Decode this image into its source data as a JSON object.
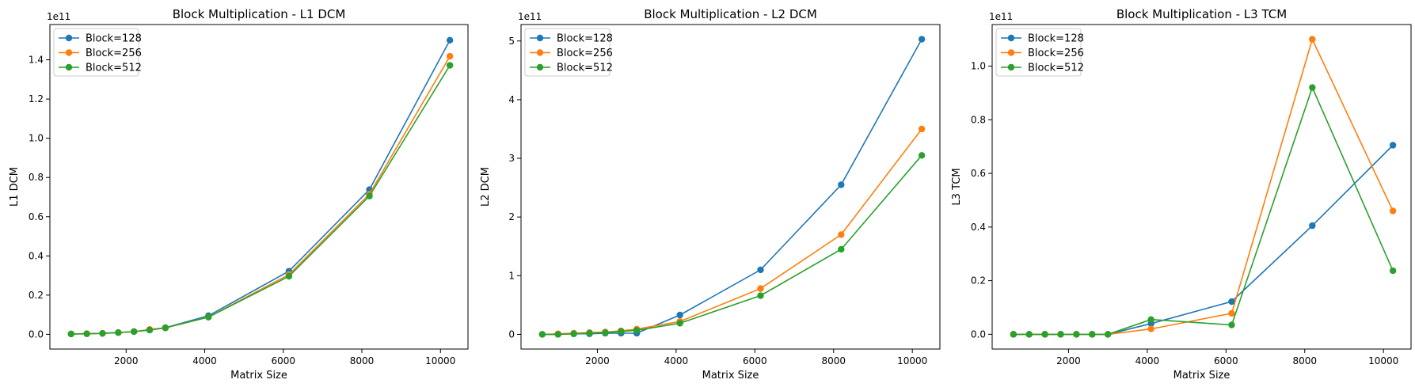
{
  "chart_data": [
    {
      "type": "line",
      "title": "Block Multiplication - L1 DCM",
      "xlabel": "Matrix Size",
      "ylabel": "L1 DCM",
      "y_offset_label": "1e11",
      "y_scale": 100000000000.0,
      "xlim": [
        60,
        10700
      ],
      "ylim": [
        -0.075,
        1.58
      ],
      "xticks": [
        2000,
        4000,
        6000,
        8000,
        10000
      ],
      "xtick_labels": [
        "2000",
        "4000",
        "6000",
        "8000",
        "10000"
      ],
      "yticks": [
        0.0,
        0.2,
        0.4,
        0.6,
        0.8,
        1.0,
        1.2,
        1.4
      ],
      "ytick_labels": [
        "0.0",
        "0.2",
        "0.4",
        "0.6",
        "0.8",
        "1.0",
        "1.2",
        "1.4"
      ],
      "legend": "top-left",
      "x": [
        600,
        1000,
        1400,
        1800,
        2200,
        2600,
        3000,
        4096,
        6144,
        8192,
        10240
      ],
      "series": [
        {
          "name": "Block=128",
          "color": "#1f77b4",
          "values": [
            0.002,
            0.003,
            0.005,
            0.009,
            0.014,
            0.022,
            0.034,
            0.095,
            0.322,
            0.738,
            1.5
          ]
        },
        {
          "name": "Block=256",
          "color": "#ff7f0e",
          "values": [
            0.002,
            0.003,
            0.005,
            0.009,
            0.014,
            0.025,
            0.033,
            0.088,
            0.305,
            0.715,
            1.418
          ]
        },
        {
          "name": "Block=512",
          "color": "#2ca02c",
          "values": [
            0.002,
            0.003,
            0.005,
            0.009,
            0.014,
            0.022,
            0.033,
            0.088,
            0.296,
            0.705,
            1.372
          ]
        }
      ]
    },
    {
      "type": "line",
      "title": "Block Multiplication - L2 DCM",
      "xlabel": "Matrix Size",
      "ylabel": "L2 DCM",
      "y_offset_label": "1e11",
      "y_scale": 100000000000.0,
      "xlim": [
        60,
        10700
      ],
      "ylim": [
        -0.25,
        5.28
      ],
      "xticks": [
        2000,
        4000,
        6000,
        8000,
        10000
      ],
      "xtick_labels": [
        "2000",
        "4000",
        "6000",
        "8000",
        "10000"
      ],
      "yticks": [
        0,
        1,
        2,
        3,
        4,
        5
      ],
      "ytick_labels": [
        "0",
        "1",
        "2",
        "3",
        "4",
        "5"
      ],
      "legend": "top-left",
      "x": [
        600,
        1000,
        1400,
        1800,
        2200,
        2600,
        3000,
        4096,
        6144,
        8192,
        10240
      ],
      "series": [
        {
          "name": "Block=128",
          "color": "#1f77b4",
          "values": [
            0.0,
            0.0,
            0.01,
            0.01,
            0.02,
            0.02,
            0.02,
            0.33,
            1.1,
            2.55,
            5.03
          ]
        },
        {
          "name": "Block=256",
          "color": "#ff7f0e",
          "values": [
            0.0,
            0.01,
            0.02,
            0.03,
            0.04,
            0.06,
            0.09,
            0.22,
            0.78,
            1.7,
            3.5
          ]
        },
        {
          "name": "Block=512",
          "color": "#2ca02c",
          "values": [
            0.0,
            0.0,
            0.01,
            0.02,
            0.03,
            0.05,
            0.07,
            0.19,
            0.66,
            1.45,
            3.05
          ]
        }
      ]
    },
    {
      "type": "line",
      "title": "Block Multiplication - L3 TCM",
      "xlabel": "Matrix Size",
      "ylabel": "L3 TCM",
      "y_offset_label": "1e11",
      "y_scale": 100000000000.0,
      "xlim": [
        60,
        10700
      ],
      "ylim": [
        -0.055,
        1.155
      ],
      "xticks": [
        2000,
        4000,
        6000,
        8000,
        10000
      ],
      "xtick_labels": [
        "2000",
        "4000",
        "6000",
        "8000",
        "10000"
      ],
      "yticks": [
        0.0,
        0.2,
        0.4,
        0.6,
        0.8,
        1.0
      ],
      "ytick_labels": [
        "0.0",
        "0.2",
        "0.4",
        "0.6",
        "0.8",
        "1.0"
      ],
      "legend": "top-left",
      "x": [
        600,
        1000,
        1400,
        1800,
        2200,
        2600,
        3000,
        4096,
        6144,
        8192,
        10240
      ],
      "series": [
        {
          "name": "Block=128",
          "color": "#1f77b4",
          "values": [
            0.0,
            0.0,
            0.0,
            0.0,
            0.0,
            0.0,
            0.0,
            0.04,
            0.122,
            0.405,
            0.705
          ]
        },
        {
          "name": "Block=256",
          "color": "#ff7f0e",
          "values": [
            0.0,
            0.0,
            0.0,
            0.0,
            0.0,
            0.0,
            0.0,
            0.02,
            0.078,
            1.1,
            0.46
          ]
        },
        {
          "name": "Block=512",
          "color": "#2ca02c",
          "values": [
            0.0,
            0.0,
            0.0,
            0.0,
            0.0,
            0.0,
            0.0,
            0.055,
            0.035,
            0.92,
            0.237
          ]
        }
      ]
    }
  ]
}
